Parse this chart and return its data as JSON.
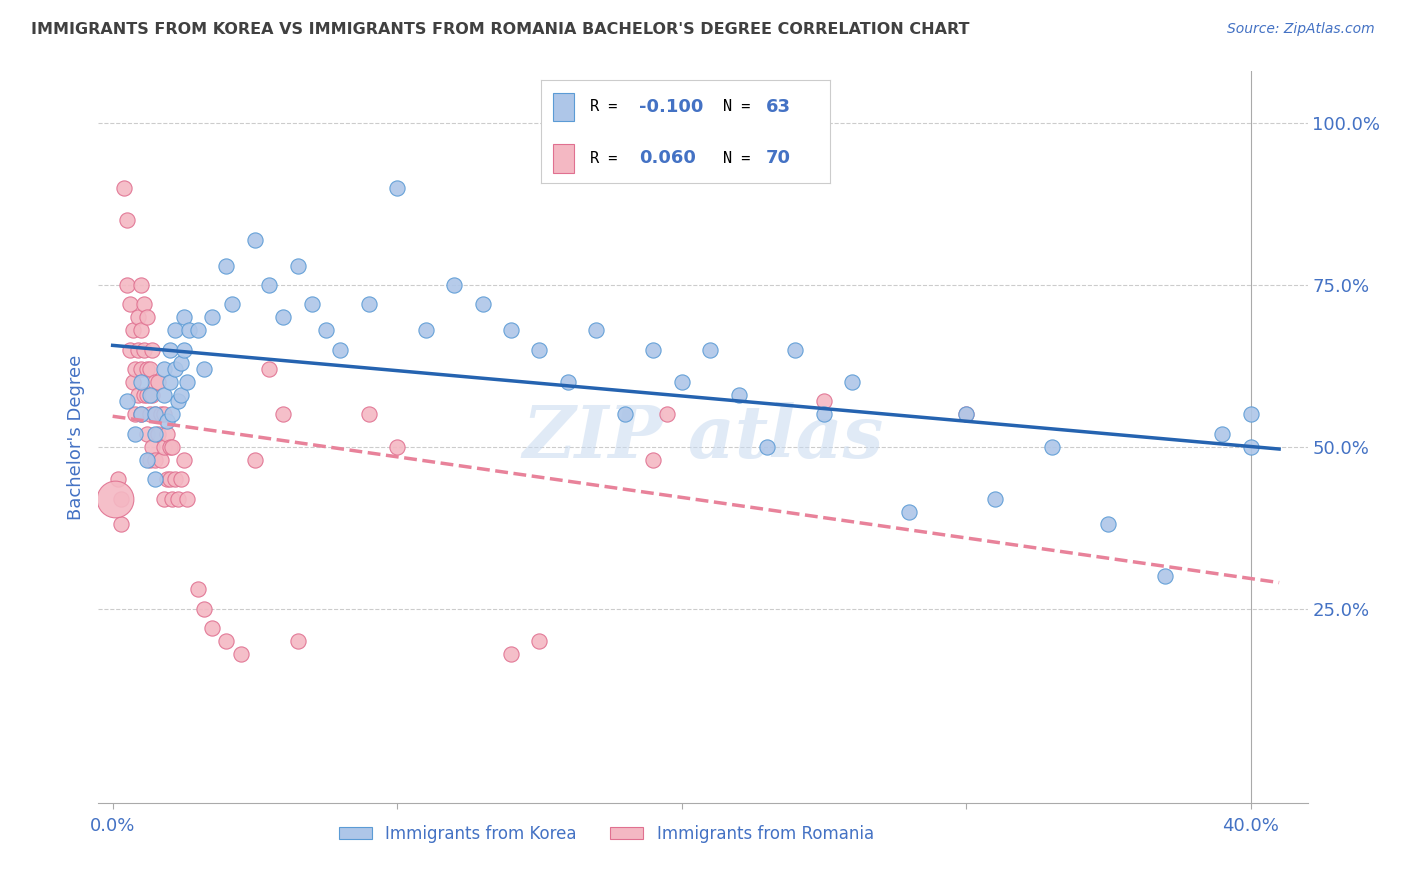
{
  "title": "IMMIGRANTS FROM KOREA VS IMMIGRANTS FROM ROMANIA BACHELOR'S DEGREE CORRELATION CHART",
  "source": "Source: ZipAtlas.com",
  "ylabel": "Bachelor's Degree",
  "right_ytick_labels": [
    "100.0%",
    "75.0%",
    "50.0%",
    "25.0%"
  ],
  "right_ytick_values": [
    1.0,
    0.75,
    0.5,
    0.25
  ],
  "xtick_labels": [
    "0.0%",
    "",
    "",
    "",
    "40.0%"
  ],
  "xtick_values": [
    0.0,
    0.1,
    0.2,
    0.3,
    0.4
  ],
  "xlim": [
    -0.005,
    0.42
  ],
  "ylim": [
    -0.05,
    1.08
  ],
  "korea_color": "#aec6e8",
  "romania_color": "#f4b8c3",
  "korea_edge_color": "#5b9bd5",
  "romania_edge_color": "#e07090",
  "korea_line_color": "#2563b0",
  "romania_line_color": "#e8829a",
  "background_color": "#ffffff",
  "grid_color": "#cccccc",
  "axis_label_color": "#4472c4",
  "title_color": "#404040",
  "legend_text_color": "#000000",
  "legend_value_color": "#4472c4",
  "dot_size": 120,
  "korea_x": [
    0.005,
    0.008,
    0.01,
    0.01,
    0.012,
    0.013,
    0.015,
    0.015,
    0.015,
    0.018,
    0.018,
    0.019,
    0.02,
    0.02,
    0.021,
    0.022,
    0.022,
    0.023,
    0.024,
    0.024,
    0.025,
    0.025,
    0.026,
    0.027,
    0.03,
    0.032,
    0.035,
    0.04,
    0.042,
    0.05,
    0.055,
    0.06,
    0.065,
    0.07,
    0.075,
    0.08,
    0.09,
    0.1,
    0.11,
    0.12,
    0.13,
    0.14,
    0.15,
    0.16,
    0.17,
    0.18,
    0.19,
    0.2,
    0.21,
    0.22,
    0.23,
    0.24,
    0.25,
    0.26,
    0.28,
    0.3,
    0.31,
    0.33,
    0.35,
    0.37,
    0.39,
    0.4,
    0.4
  ],
  "korea_y": [
    0.57,
    0.52,
    0.6,
    0.55,
    0.48,
    0.58,
    0.55,
    0.52,
    0.45,
    0.62,
    0.58,
    0.54,
    0.65,
    0.6,
    0.55,
    0.68,
    0.62,
    0.57,
    0.63,
    0.58,
    0.7,
    0.65,
    0.6,
    0.68,
    0.68,
    0.62,
    0.7,
    0.78,
    0.72,
    0.82,
    0.75,
    0.7,
    0.78,
    0.72,
    0.68,
    0.65,
    0.72,
    0.9,
    0.68,
    0.75,
    0.72,
    0.68,
    0.65,
    0.6,
    0.68,
    0.55,
    0.65,
    0.6,
    0.65,
    0.58,
    0.5,
    0.65,
    0.55,
    0.6,
    0.4,
    0.55,
    0.42,
    0.5,
    0.38,
    0.3,
    0.52,
    0.55,
    0.5
  ],
  "romania_x": [
    0.002,
    0.003,
    0.003,
    0.004,
    0.005,
    0.005,
    0.006,
    0.006,
    0.007,
    0.007,
    0.008,
    0.008,
    0.009,
    0.009,
    0.009,
    0.01,
    0.01,
    0.01,
    0.01,
    0.011,
    0.011,
    0.011,
    0.012,
    0.012,
    0.012,
    0.012,
    0.013,
    0.013,
    0.013,
    0.014,
    0.014,
    0.014,
    0.015,
    0.015,
    0.015,
    0.016,
    0.016,
    0.017,
    0.017,
    0.018,
    0.018,
    0.018,
    0.019,
    0.019,
    0.02,
    0.02,
    0.021,
    0.021,
    0.022,
    0.023,
    0.024,
    0.025,
    0.026,
    0.03,
    0.032,
    0.035,
    0.04,
    0.045,
    0.05,
    0.055,
    0.06,
    0.065,
    0.09,
    0.1,
    0.14,
    0.15,
    0.19,
    0.195,
    0.25,
    0.3
  ],
  "romania_y": [
    0.45,
    0.42,
    0.38,
    0.9,
    0.85,
    0.75,
    0.72,
    0.65,
    0.68,
    0.6,
    0.62,
    0.55,
    0.7,
    0.65,
    0.58,
    0.75,
    0.68,
    0.62,
    0.55,
    0.72,
    0.65,
    0.58,
    0.7,
    0.62,
    0.58,
    0.52,
    0.62,
    0.55,
    0.48,
    0.65,
    0.58,
    0.5,
    0.6,
    0.55,
    0.48,
    0.6,
    0.52,
    0.55,
    0.48,
    0.55,
    0.5,
    0.42,
    0.52,
    0.45,
    0.5,
    0.45,
    0.5,
    0.42,
    0.45,
    0.42,
    0.45,
    0.48,
    0.42,
    0.28,
    0.25,
    0.22,
    0.2,
    0.18,
    0.48,
    0.62,
    0.55,
    0.2,
    0.55,
    0.5,
    0.18,
    0.2,
    0.48,
    0.55,
    0.57,
    0.55
  ],
  "romania_large_x": [
    0.001
  ],
  "romania_large_y": [
    0.42
  ],
  "romania_large_size": [
    700
  ]
}
